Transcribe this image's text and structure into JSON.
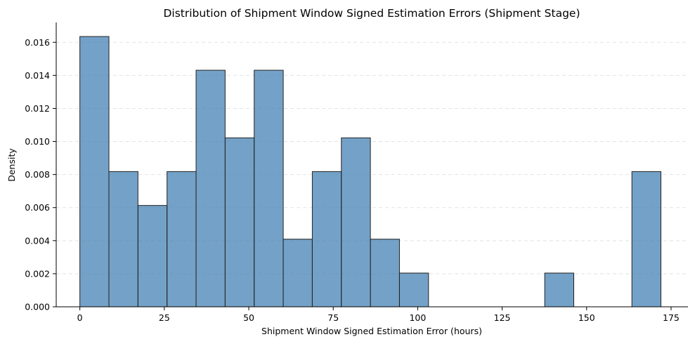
{
  "chart_data": {
    "type": "bar",
    "subtype": "histogram",
    "title": "Distribution of Shipment Window Signed Estimation Errors (Shipment Stage)",
    "xlabel": "Shipment Window Signed Estimation Error (hours)",
    "ylabel": "Density",
    "xlim": [
      -7,
      180
    ],
    "ylim": [
      0,
      0.0172
    ],
    "xticks": [
      0,
      25,
      50,
      75,
      100,
      125,
      150,
      175
    ],
    "xtick_labels": [
      "0",
      "25",
      "50",
      "75",
      "100",
      "125",
      "150",
      "175"
    ],
    "yticks": [
      0,
      0.002,
      0.004,
      0.006,
      0.008,
      0.01,
      0.012,
      0.014,
      0.016
    ],
    "ytick_labels": [
      "0.000",
      "0.002",
      "0.004",
      "0.006",
      "0.008",
      "0.010",
      "0.012",
      "0.014",
      "0.016"
    ],
    "grid": "y-dashed",
    "bar_color": "#4682b4",
    "edge_color": "#222222",
    "bins": [
      {
        "x0": 0.0,
        "x1": 8.6,
        "density": 0.01635
      },
      {
        "x0": 8.6,
        "x1": 17.2,
        "density": 0.00818
      },
      {
        "x0": 17.2,
        "x1": 25.8,
        "density": 0.00613
      },
      {
        "x0": 25.8,
        "x1": 34.4,
        "density": 0.00818
      },
      {
        "x0": 34.4,
        "x1": 43.0,
        "density": 0.01431
      },
      {
        "x0": 43.0,
        "x1": 51.6,
        "density": 0.01022
      },
      {
        "x0": 51.6,
        "x1": 60.2,
        "density": 0.01431
      },
      {
        "x0": 60.2,
        "x1": 68.8,
        "density": 0.00409
      },
      {
        "x0": 68.8,
        "x1": 77.4,
        "density": 0.00818
      },
      {
        "x0": 77.4,
        "x1": 86.0,
        "density": 0.01022
      },
      {
        "x0": 86.0,
        "x1": 94.6,
        "density": 0.00409
      },
      {
        "x0": 94.6,
        "x1": 103.2,
        "density": 0.00204
      },
      {
        "x0": 103.2,
        "x1": 111.8,
        "density": 0
      },
      {
        "x0": 111.8,
        "x1": 120.4,
        "density": 0
      },
      {
        "x0": 120.4,
        "x1": 129.0,
        "density": 0
      },
      {
        "x0": 129.0,
        "x1": 137.6,
        "density": 0
      },
      {
        "x0": 137.6,
        "x1": 146.2,
        "density": 0.00204
      },
      {
        "x0": 146.2,
        "x1": 154.8,
        "density": 0
      },
      {
        "x0": 154.8,
        "x1": 163.4,
        "density": 0
      },
      {
        "x0": 163.4,
        "x1": 172.0,
        "density": 0.00818
      }
    ]
  }
}
